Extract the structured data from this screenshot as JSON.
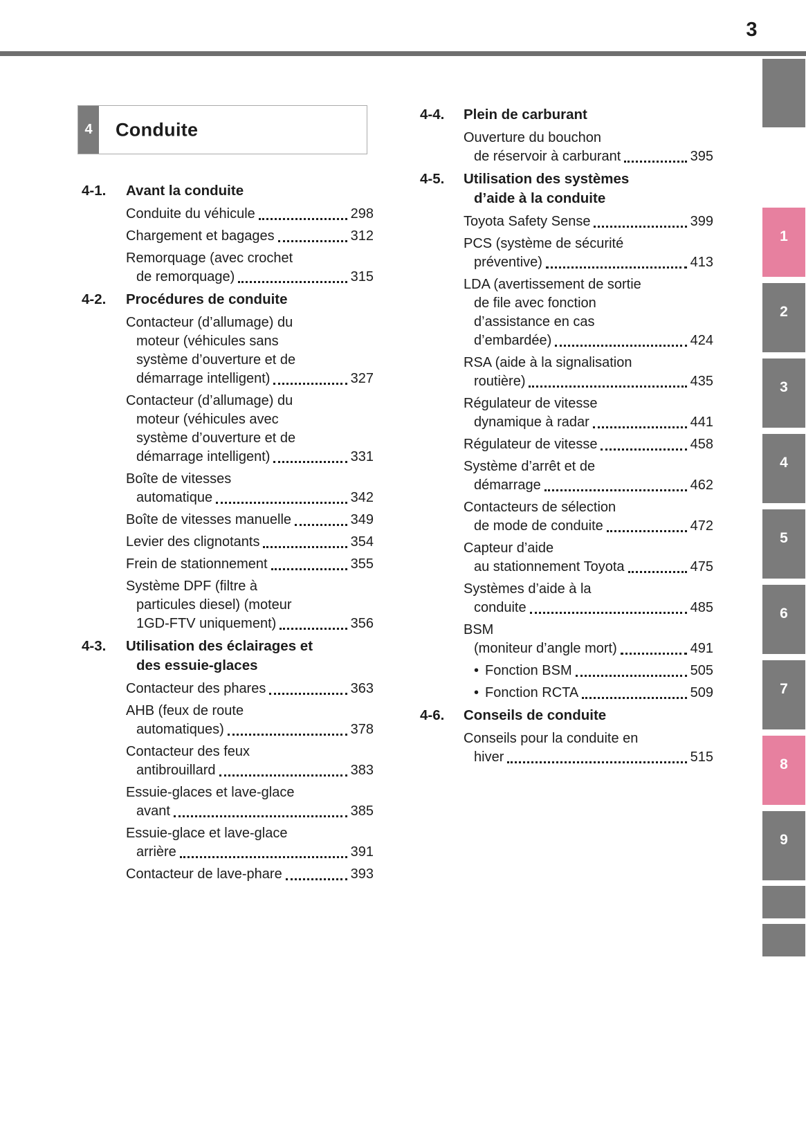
{
  "page": {
    "number": "3"
  },
  "chapter": {
    "number": "4",
    "title": "Conduite"
  },
  "glyphs": {
    "bullet": "•"
  },
  "colors": {
    "tab_gray": "#7b7b7b",
    "tab_pink": "#e7809f",
    "rule_gray": "#6f6f6f",
    "text": "#1c1c1c"
  },
  "columns": {
    "left": {
      "sections": [
        {
          "num": "4-1.",
          "title_lines": [
            "Avant la conduite"
          ],
          "entries": [
            {
              "lines": [
                "Conduite du véhicule"
              ],
              "page": "298"
            },
            {
              "lines": [
                "Chargement et bagages"
              ],
              "page": "312"
            },
            {
              "lines": [
                "Remorquage (avec crochet",
                "de remorquage)"
              ],
              "page": "315"
            }
          ]
        },
        {
          "num": "4-2.",
          "title_lines": [
            "Procédures de conduite"
          ],
          "entries": [
            {
              "lines": [
                "Contacteur (d’allumage) du",
                "moteur (véhicules sans",
                "système d’ouverture et de",
                "démarrage intelligent)"
              ],
              "page": "327"
            },
            {
              "lines": [
                "Contacteur (d’allumage) du",
                "moteur (véhicules avec",
                "système d’ouverture et de",
                "démarrage intelligent)"
              ],
              "page": "331"
            },
            {
              "lines": [
                "Boîte de vitesses",
                "automatique"
              ],
              "page": "342"
            },
            {
              "lines": [
                "Boîte de vitesses manuelle"
              ],
              "page": "349"
            },
            {
              "lines": [
                "Levier des clignotants"
              ],
              "page": "354"
            },
            {
              "lines": [
                "Frein de stationnement"
              ],
              "page": "355"
            },
            {
              "lines": [
                "Système DPF (filtre à",
                "particules diesel) (moteur",
                "1GD-FTV uniquement)"
              ],
              "page": "356"
            }
          ]
        },
        {
          "num": "4-3.",
          "title_lines": [
            "Utilisation des éclairages et",
            "des essuie-glaces"
          ],
          "entries": [
            {
              "lines": [
                "Contacteur des phares"
              ],
              "page": "363"
            },
            {
              "lines": [
                "AHB (feux de route",
                "automatiques)"
              ],
              "page": "378"
            },
            {
              "lines": [
                "Contacteur des feux",
                "antibrouillard"
              ],
              "page": "383"
            },
            {
              "lines": [
                "Essuie-glaces et lave-glace",
                "avant"
              ],
              "page": "385"
            },
            {
              "lines": [
                "Essuie-glace et lave-glace",
                "arrière"
              ],
              "page": "391"
            },
            {
              "lines": [
                "Contacteur de lave-phare"
              ],
              "page": "393"
            }
          ]
        }
      ]
    },
    "right": {
      "sections": [
        {
          "num": "4-4.",
          "title_lines": [
            "Plein de carburant"
          ],
          "entries": [
            {
              "lines": [
                "Ouverture du bouchon",
                "de réservoir à carburant"
              ],
              "page": "395"
            }
          ]
        },
        {
          "num": "4-5.",
          "title_lines": [
            "Utilisation des systèmes",
            "d’aide à la conduite"
          ],
          "entries": [
            {
              "lines": [
                "Toyota Safety Sense"
              ],
              "page": "399"
            },
            {
              "lines": [
                "PCS (système de sécurité",
                "préventive)"
              ],
              "page": "413"
            },
            {
              "lines": [
                "LDA (avertissement de sortie",
                "de file avec fonction",
                "d’assistance en cas",
                "d’embardée)"
              ],
              "page": "424"
            },
            {
              "lines": [
                "RSA (aide à la signalisation",
                "routière)"
              ],
              "page": "435"
            },
            {
              "lines": [
                "Régulateur de vitesse",
                "dynamique à radar"
              ],
              "page": "441"
            },
            {
              "lines": [
                "Régulateur de vitesse"
              ],
              "page": "458"
            },
            {
              "lines": [
                "Système d’arrêt et de",
                "démarrage"
              ],
              "page": "462"
            },
            {
              "lines": [
                "Contacteurs de sélection",
                "de mode de conduite"
              ],
              "page": "472"
            },
            {
              "lines": [
                "Capteur d’aide",
                "au stationnement Toyota"
              ],
              "page": "475"
            },
            {
              "lines": [
                "Systèmes d’aide à la",
                "conduite"
              ],
              "page": "485"
            },
            {
              "lines": [
                "BSM",
                "(moniteur d’angle mort)"
              ],
              "page": "491"
            },
            {
              "lines": [
                "Fonction BSM"
              ],
              "page": "505",
              "bullet": true
            },
            {
              "lines": [
                "Fonction RCTA"
              ],
              "page": "509",
              "bullet": true
            }
          ]
        },
        {
          "num": "4-6.",
          "title_lines": [
            "Conseils de conduite"
          ],
          "entries": [
            {
              "lines": [
                "Conseils pour la conduite en",
                "hiver"
              ],
              "page": "515"
            }
          ]
        }
      ]
    }
  },
  "sidebar_tabs": [
    {
      "kind": "top",
      "label": ""
    },
    {
      "kind": "num",
      "label": "1",
      "active": true
    },
    {
      "kind": "num",
      "label": "2"
    },
    {
      "kind": "num",
      "label": "3"
    },
    {
      "kind": "num",
      "label": "4"
    },
    {
      "kind": "num",
      "label": "5"
    },
    {
      "kind": "num",
      "label": "6"
    },
    {
      "kind": "num",
      "label": "7"
    },
    {
      "kind": "num",
      "label": "8",
      "active": true
    },
    {
      "kind": "num",
      "label": "9"
    },
    {
      "kind": "short",
      "label": ""
    },
    {
      "kind": "short",
      "label": ""
    }
  ]
}
